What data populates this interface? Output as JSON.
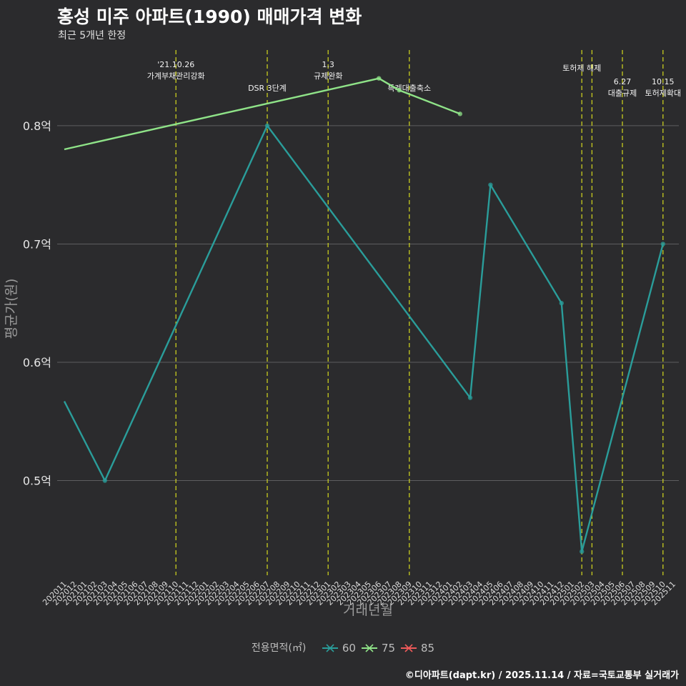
{
  "header": {
    "title": "홍성 미주 아파트(1990) 매매가격 변화",
    "subtitle": "최근 5개년 한정"
  },
  "caption": "©디아파트(dapt.kr) / 2025.11.14 / 자료=국토교통부 실거래가",
  "legend": {
    "title": "전용면적(㎡)",
    "items": [
      {
        "label": "60",
        "color": "#2a9d9a"
      },
      {
        "label": "75",
        "color": "#8fe388"
      },
      {
        "label": "85",
        "color": "#f05a5a"
      }
    ]
  },
  "chart_data": {
    "type": "line",
    "title": "홍성 미주 아파트(1990) 매매가격 변화",
    "subtitle": "최근 5개년 한정",
    "xlabel": "거래년월",
    "ylabel": "평균가(원)",
    "ylim": [
      0.42,
      0.87
    ],
    "yticks": [
      {
        "value": 0.5,
        "label": "0.5억"
      },
      {
        "value": 0.6,
        "label": "0.6억"
      },
      {
        "value": 0.7,
        "label": "0.7억"
      },
      {
        "value": 0.8,
        "label": "0.8억"
      }
    ],
    "categories": [
      "202011",
      "202012",
      "202101",
      "202102",
      "202103",
      "202104",
      "202105",
      "202106",
      "202107",
      "202108",
      "202109",
      "202110",
      "202111",
      "202112",
      "202201",
      "202202",
      "202203",
      "202204",
      "202205",
      "202206",
      "202207",
      "202208",
      "202209",
      "202210",
      "202211",
      "202212",
      "202301",
      "202302",
      "202303",
      "202304",
      "202305",
      "202306",
      "202307",
      "202308",
      "202309",
      "202310",
      "202311",
      "202312",
      "202401",
      "202402",
      "202403",
      "202404",
      "202405",
      "202406",
      "202407",
      "202408",
      "202409",
      "202410",
      "202411",
      "202412",
      "202501",
      "202502",
      "202503",
      "202504",
      "202505",
      "202506",
      "202507",
      "202508",
      "202509",
      "202510",
      "202511"
    ],
    "series": [
      {
        "name": "60",
        "color": "#2a9d9a",
        "points": [
          [
            "202011",
            0.567
          ],
          [
            "202103",
            0.5
          ],
          [
            "202207",
            0.8
          ],
          [
            "202403",
            0.57
          ],
          [
            "202405",
            0.75
          ],
          [
            "202412",
            0.65
          ],
          [
            "202502",
            0.44
          ],
          [
            "202510",
            0.7
          ]
        ]
      },
      {
        "name": "75",
        "color": "#8fe388",
        "points": [
          [
            "202011",
            0.78
          ],
          [
            "202306",
            0.84
          ],
          [
            "202308",
            0.83
          ],
          [
            "202402",
            0.81
          ]
        ]
      },
      {
        "name": "85",
        "color": "#f05a5a",
        "points": []
      }
    ],
    "events": [
      {
        "x": "202110",
        "lines": [
          "'21.10.26",
          "가계부채관리강화"
        ],
        "level": 1
      },
      {
        "x": "202207",
        "lines": [
          "DSR 3단계"
        ],
        "level": 3
      },
      {
        "x": "202301",
        "lines": [
          "1.3",
          "규제완화"
        ],
        "level": 1
      },
      {
        "x": "202309",
        "lines": [
          "특례대출축소"
        ],
        "level": 3
      },
      {
        "x": "202502",
        "lines": [
          "토허제 해제"
        ],
        "level": 2
      },
      {
        "x": "202503",
        "lines": [],
        "level": 0
      },
      {
        "x": "202506",
        "lines": [
          "6.27",
          "대출규제"
        ],
        "level": 0
      },
      {
        "x": "202510",
        "lines": [
          "10.15",
          "토허제확대"
        ],
        "level": 0
      }
    ]
  }
}
